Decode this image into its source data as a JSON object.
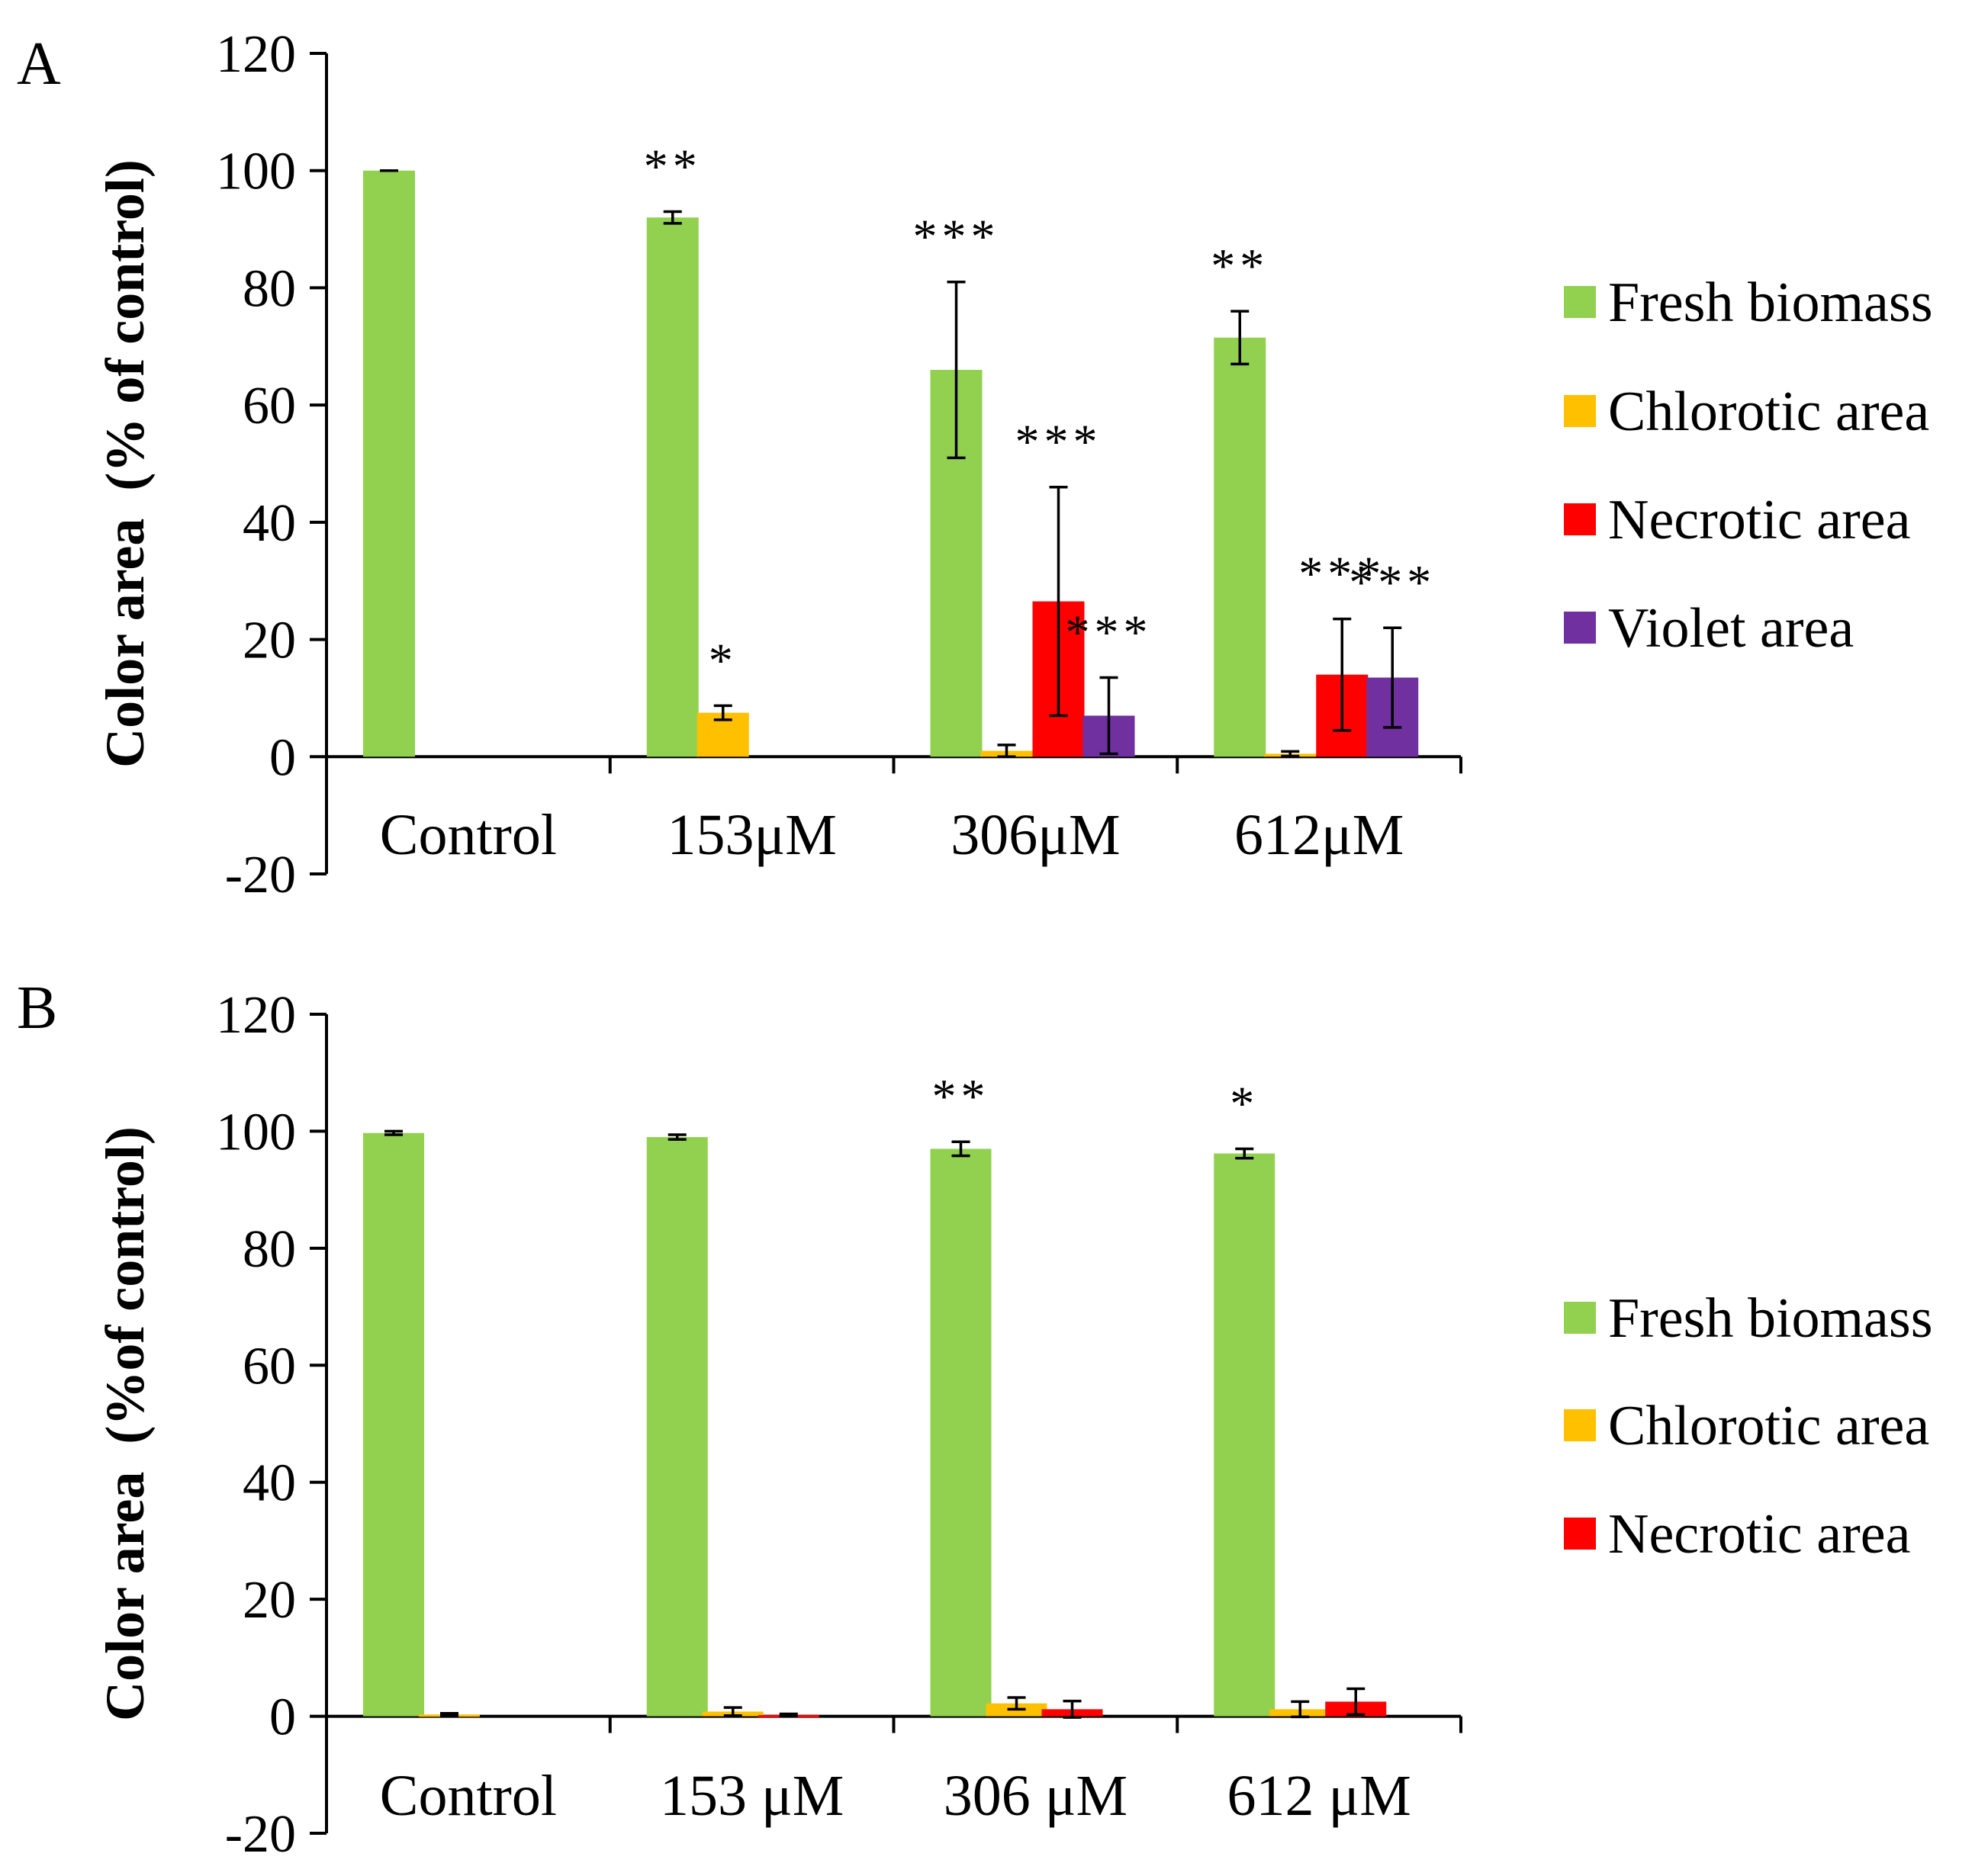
{
  "chart_data": [
    {
      "panel": "A",
      "type": "bar",
      "ylabel": "Color area  (% of control)",
      "xlabel": "",
      "ylim": [
        -20,
        120
      ],
      "yticks": [
        "-20",
        "0",
        "20",
        "40",
        "60",
        "80",
        "100",
        "120"
      ],
      "categories": [
        "Control",
        "153μM",
        "306μM",
        "612μM"
      ],
      "series": [
        {
          "name": "Fresh biomass",
          "color": "#92D050",
          "values": [
            100,
            92,
            66,
            71.5
          ],
          "errors": [
            0,
            1,
            15,
            4.5
          ],
          "annotations": [
            "",
            "**",
            "***",
            "**"
          ]
        },
        {
          "name": "Chlorotic area",
          "color": "#FFC000",
          "values": [
            0,
            7.5,
            1,
            0.5
          ],
          "errors": [
            0,
            1.2,
            1,
            0.4
          ],
          "annotations": [
            "",
            "*",
            "",
            ""
          ]
        },
        {
          "name": "Necrotic area",
          "color": "#FF0000",
          "values": [
            0,
            0,
            26.5,
            14
          ],
          "errors": [
            0,
            0,
            19.5,
            9.5
          ],
          "annotations": [
            "",
            "",
            "***",
            "***"
          ]
        },
        {
          "name": "Violet area",
          "color": "#7030A0",
          "values": [
            0,
            0,
            7,
            13.5
          ],
          "errors": [
            0,
            0,
            6.5,
            8.5
          ],
          "annotations": [
            "",
            "",
            "***",
            "***"
          ]
        }
      ],
      "legend": "right"
    },
    {
      "panel": "B",
      "type": "bar",
      "ylabel": "Color area  (%of control)",
      "xlabel": "",
      "ylim": [
        -20,
        120
      ],
      "yticks": [
        "-20",
        "0",
        "20",
        "40",
        "60",
        "80",
        "100",
        "120"
      ],
      "categories": [
        "Control",
        "153 μM",
        "306 μM",
        "612 μM"
      ],
      "series": [
        {
          "name": "Fresh biomass",
          "color": "#92D050",
          "values": [
            99.7,
            99,
            97,
            96.2
          ],
          "errors": [
            0.3,
            0.4,
            1.2,
            0.8
          ],
          "annotations": [
            "",
            "",
            "**",
            "*"
          ]
        },
        {
          "name": "Chlorotic area",
          "color": "#FFC000",
          "values": [
            0.3,
            0.8,
            2.2,
            1.2
          ],
          "errors": [
            0.2,
            0.7,
            1,
            1.3
          ],
          "annotations": [
            "",
            "",
            "",
            ""
          ]
        },
        {
          "name": "Necrotic area",
          "color": "#FF0000",
          "values": [
            0,
            0.2,
            1.2,
            2.5
          ],
          "errors": [
            0,
            0.2,
            1.4,
            2.2
          ],
          "annotations": [
            "",
            "",
            "",
            ""
          ]
        }
      ],
      "legend": "right"
    }
  ]
}
